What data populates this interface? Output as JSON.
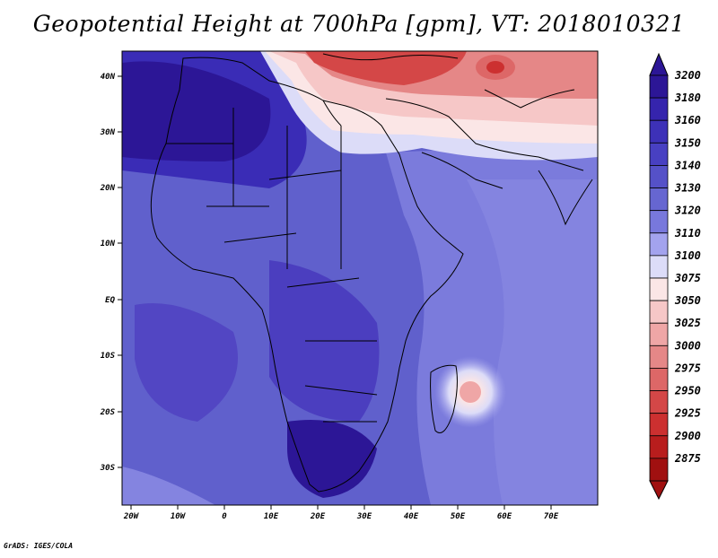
{
  "title": "Geopotential Height at 700hPa [gpm], VT: 2018010321",
  "credit": "GrADS: IGES/COLA",
  "lat_ticks": [
    "40N",
    "30N",
    "20N",
    "10N",
    "EQ",
    "10S",
    "20S",
    "30S"
  ],
  "lon_ticks": [
    "20W",
    "10W",
    "0",
    "10E",
    "20E",
    "30E",
    "40E",
    "50E",
    "60E",
    "70E"
  ],
  "colorbar": {
    "levels": [
      "3200",
      "3180",
      "3160",
      "3150",
      "3140",
      "3130",
      "3120",
      "3110",
      "3100",
      "3075",
      "3050",
      "3025",
      "3000",
      "2975",
      "2950",
      "2925",
      "2900",
      "2875"
    ],
    "colors": [
      "#2c1696",
      "#3524ad",
      "#3d31b8",
      "#4840c2",
      "#5551c8",
      "#6666d1",
      "#7878dc",
      "#a3a3ee",
      "#dcdcf8",
      "#fbe6e6",
      "#f6c7c7",
      "#efa6a6",
      "#e58787",
      "#dd6767",
      "#d44747",
      "#cc3030",
      "#b81d1d",
      "#a01010"
    ]
  }
}
